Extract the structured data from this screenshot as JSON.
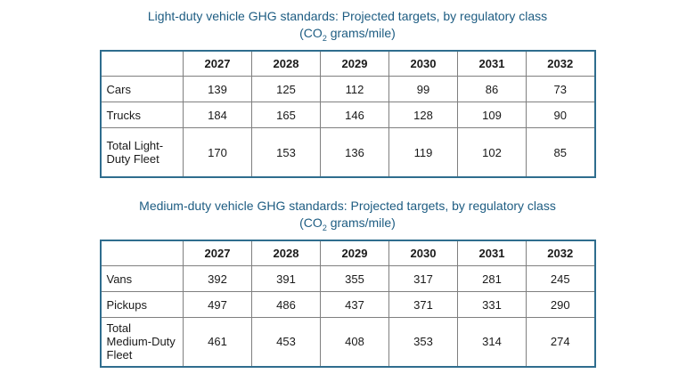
{
  "colors": {
    "title_text": "#1d5c82",
    "table_outer_border": "#2f6d8e",
    "table_inner_border": "#7f7f7f",
    "cell_text": "#1a1a1a",
    "background": "#ffffff"
  },
  "titles": [
    {
      "line1": "Light-duty vehicle GHG standards: Projected targets, by regulatory class",
      "co_prefix": "(CO",
      "co_sub": "2",
      "co_suffix": " grams/mile)"
    },
    {
      "line1": "Medium-duty vehicle GHG standards: Projected targets, by regulatory class",
      "co_prefix": "(CO",
      "co_sub": "2",
      "co_suffix": " grams/mile)"
    }
  ],
  "chart_data": [
    {
      "type": "table",
      "title": "Light-duty vehicle GHG standards: Projected targets, by regulatory class (CO2 grams/mile)",
      "columns": [
        "2027",
        "2028",
        "2029",
        "2030",
        "2031",
        "2032"
      ],
      "rows": [
        {
          "label": "Cars",
          "values": [
            139,
            125,
            112,
            99,
            86,
            73
          ]
        },
        {
          "label": "Trucks",
          "values": [
            184,
            165,
            146,
            128,
            109,
            90
          ]
        },
        {
          "label": "Total Light-Duty Fleet",
          "values": [
            170,
            153,
            136,
            119,
            102,
            85
          ]
        }
      ]
    },
    {
      "type": "table",
      "title": "Medium-duty vehicle GHG standards: Projected targets, by regulatory class (CO2 grams/mile)",
      "columns": [
        "2027",
        "2028",
        "2029",
        "2030",
        "2031",
        "2032"
      ],
      "rows": [
        {
          "label": "Vans",
          "values": [
            392,
            391,
            355,
            317,
            281,
            245
          ]
        },
        {
          "label": "Pickups",
          "values": [
            497,
            486,
            437,
            371,
            331,
            290
          ]
        },
        {
          "label": "Total Medium-Duty Fleet",
          "values": [
            461,
            453,
            408,
            353,
            314,
            274
          ]
        }
      ]
    }
  ]
}
